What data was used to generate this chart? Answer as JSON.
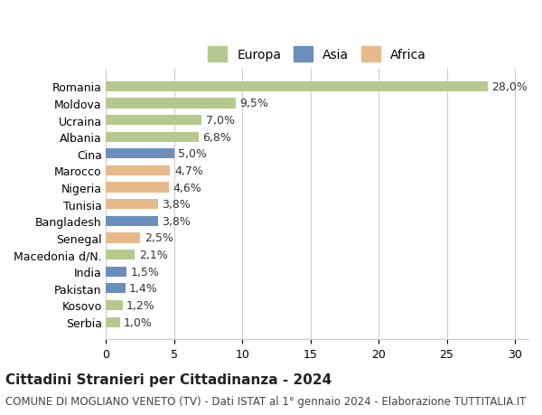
{
  "categories": [
    "Romania",
    "Moldova",
    "Ucraina",
    "Albania",
    "Cina",
    "Marocco",
    "Nigeria",
    "Tunisia",
    "Bangladesh",
    "Senegal",
    "Macedonia d/N.",
    "India",
    "Pakistan",
    "Kosovo",
    "Serbia"
  ],
  "values": [
    28.0,
    9.5,
    7.0,
    6.8,
    5.0,
    4.7,
    4.6,
    3.8,
    3.8,
    2.5,
    2.1,
    1.5,
    1.4,
    1.2,
    1.0
  ],
  "labels": [
    "28,0%",
    "9,5%",
    "7,0%",
    "6,8%",
    "5,0%",
    "4,7%",
    "4,6%",
    "3,8%",
    "3,8%",
    "2,5%",
    "2,1%",
    "1,5%",
    "1,4%",
    "1,2%",
    "1,0%"
  ],
  "continents": [
    "Europa",
    "Europa",
    "Europa",
    "Europa",
    "Asia",
    "Africa",
    "Africa",
    "Africa",
    "Asia",
    "Africa",
    "Europa",
    "Asia",
    "Asia",
    "Europa",
    "Europa"
  ],
  "colors": {
    "Europa": "#b5c98e",
    "Asia": "#6b8fbc",
    "Africa": "#e8b98a"
  },
  "legend": {
    "Europa": "#b5c98e",
    "Asia": "#6b8fbc",
    "Africa": "#e8b98a"
  },
  "xlim": [
    0,
    31
  ],
  "xticks": [
    0,
    5,
    10,
    15,
    20,
    25,
    30
  ],
  "title": "Cittadini Stranieri per Cittadinanza - 2024",
  "subtitle": "COMUNE DI MOGLIANO VENETO (TV) - Dati ISTAT al 1° gennaio 2024 - Elaborazione TUTTITALIA.IT",
  "background_color": "#ffffff",
  "grid_color": "#cccccc",
  "bar_height": 0.6,
  "label_fontsize": 9,
  "tick_fontsize": 9,
  "title_fontsize": 11,
  "subtitle_fontsize": 8.5
}
